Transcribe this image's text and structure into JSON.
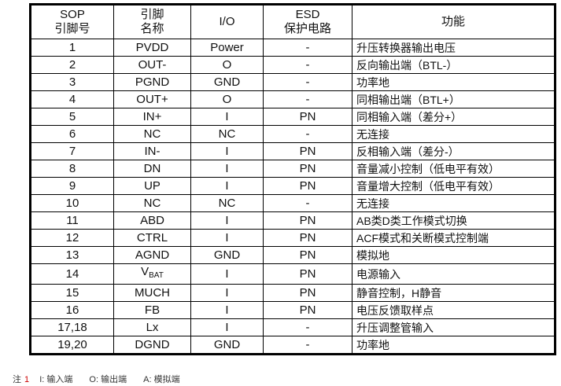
{
  "header_lines": [
    [
      "SOP",
      "引脚号"
    ],
    [
      "引脚",
      "名称"
    ],
    [
      "I/O"
    ],
    [
      "ESD",
      "保护电路"
    ],
    [
      "功能"
    ]
  ],
  "rows": [
    {
      "pin": "1",
      "name": "PVDD",
      "io": "Power",
      "esd": "-",
      "func": "升压转换器输出电压"
    },
    {
      "pin": "2",
      "name": "OUT-",
      "io": "O",
      "esd": "-",
      "func": "反向输出端（BTL-）"
    },
    {
      "pin": "3",
      "name": "PGND",
      "io": "GND",
      "esd": "-",
      "func": "功率地"
    },
    {
      "pin": "4",
      "name": "OUT+",
      "io": "O",
      "esd": "-",
      "func": "同相输出端（BTL+）"
    },
    {
      "pin": "5",
      "name": "IN+",
      "io": "I",
      "esd": "PN",
      "func": "同相输入端（差分+）"
    },
    {
      "pin": "6",
      "name": "NC",
      "io": "NC",
      "esd": "-",
      "func": "无连接"
    },
    {
      "pin": "7",
      "name": "IN-",
      "io": "I",
      "esd": "PN",
      "func": "反相输入端（差分-）"
    },
    {
      "pin": "8",
      "name": "DN",
      "io": "I",
      "esd": "PN",
      "func": "音量减小控制（低电平有效）"
    },
    {
      "pin": "9",
      "name": "UP",
      "io": "I",
      "esd": "PN",
      "func": "音量增大控制（低电平有效）"
    },
    {
      "pin": "10",
      "name": "NC",
      "io": "NC",
      "esd": "-",
      "func": "无连接"
    },
    {
      "pin": "11",
      "name": "ABD",
      "io": "I",
      "esd": "PN",
      "func": "AB类D类工作模式切换"
    },
    {
      "pin": "12",
      "name": "CTRL",
      "io": "I",
      "esd": "PN",
      "func": "ACF模式和关断模式控制端"
    },
    {
      "pin": "13",
      "name": "AGND",
      "io": "GND",
      "esd": "PN",
      "func": "模拟地"
    },
    {
      "pin": "14",
      "name": "V",
      "name_sub": "BAT",
      "io": "I",
      "esd": "PN",
      "func": "电源输入"
    },
    {
      "pin": "15",
      "name": "MUCH",
      "io": "I",
      "esd": "PN",
      "func": "静音控制，H静音"
    },
    {
      "pin": "16",
      "name": "FB",
      "io": "I",
      "esd": "PN",
      "func": "电压反馈取样点"
    },
    {
      "pin": "17,18",
      "name": "Lx",
      "io": "I",
      "esd": "-",
      "func": "升压调整管输入"
    },
    {
      "pin": "19,20",
      "name": "DGND",
      "io": "GND",
      "esd": "-",
      "func": "功率地"
    }
  ],
  "note": {
    "label": "注",
    "number": "1",
    "items": [
      "I: 输入端",
      "O: 输出端",
      "A: 模拟端"
    ]
  }
}
